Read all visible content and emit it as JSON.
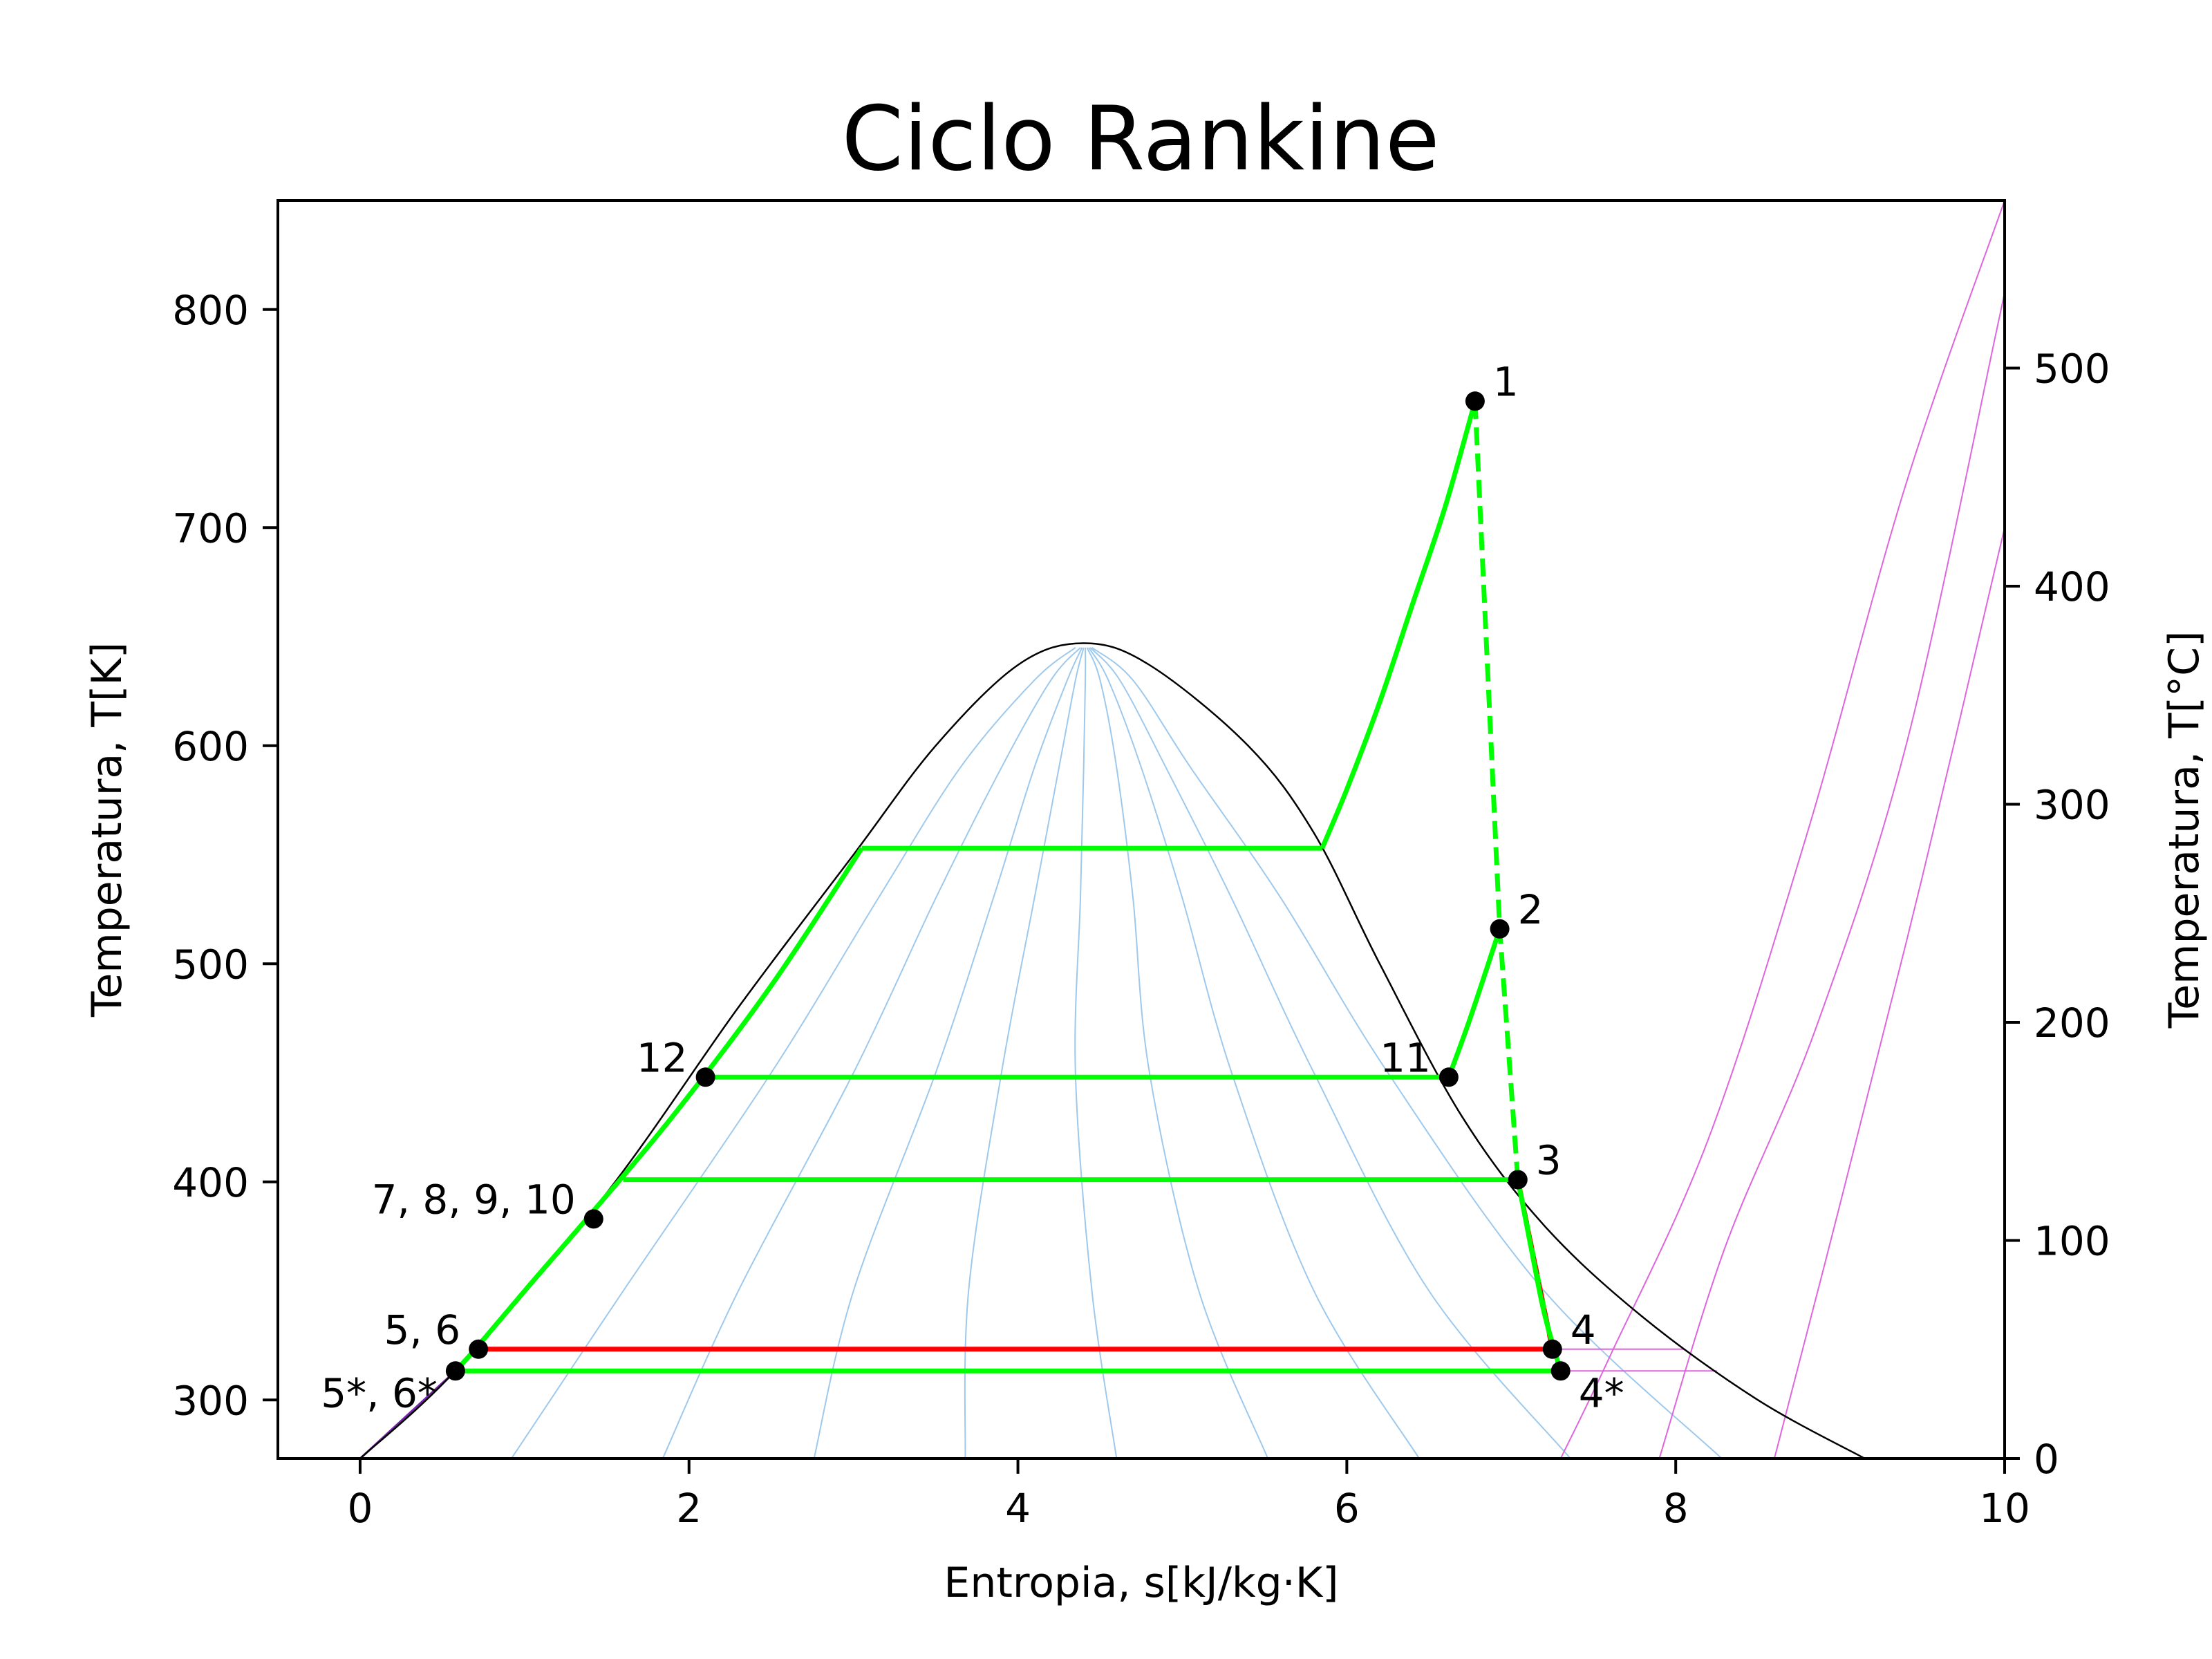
{
  "chart_data": {
    "type": "line",
    "title": "Ciclo Rankine",
    "xlabel": "Entropia, s[kJ/kg·K]",
    "ylabel": "Temperatura, T[K]",
    "ylabel_right": "Temperatura, T[°C]",
    "xlim": [
      -0.5,
      10
    ],
    "ylim": [
      273.15,
      850
    ],
    "ylim_right": [
      0,
      576.85
    ],
    "xticks": [
      "0",
      "2",
      "4",
      "6",
      "8",
      "10"
    ],
    "yticks": [
      "300",
      "400",
      "500",
      "600",
      "700",
      "800"
    ],
    "yticks_right": [
      "0",
      "100",
      "200",
      "300",
      "400",
      "500"
    ],
    "colors": {
      "cycle": "#00ff00",
      "real": "#ff0000",
      "dome": "#000000",
      "quality_lines": "#9ec9ec",
      "isobars": "#dd66dd",
      "points": "#000000"
    },
    "saturation_dome": {
      "s": [
        0,
        0.6,
        1.5,
        2.3,
        3.0,
        3.5,
        4.0,
        4.4,
        4.8,
        5.4,
        5.8,
        6.2,
        6.7,
        7.2,
        7.8,
        8.5,
        9.15
      ],
      "T": [
        273.15,
        315,
        395,
        480,
        550,
        600,
        637,
        647,
        637,
        600,
        560,
        500,
        430,
        380,
        338,
        300,
        273.15
      ]
    },
    "quality_lines": [
      {
        "q": 0.1,
        "s": [
          0.92,
          1.6,
          2.5,
          3.15,
          3.65,
          4.1,
          4.35
        ]
      },
      {
        "q": 0.2,
        "s": [
          1.84,
          2.3,
          3.0,
          3.5,
          3.9,
          4.2,
          4.38
        ]
      },
      {
        "q": 0.3,
        "s": [
          2.76,
          3.0,
          3.5,
          3.85,
          4.1,
          4.3,
          4.39
        ]
      },
      {
        "q": 0.4,
        "s": [
          3.68,
          3.7,
          3.9,
          4.1,
          4.25,
          4.35,
          4.4
        ]
      },
      {
        "q": 0.5,
        "s": [
          4.6,
          4.45,
          4.35,
          4.38,
          4.4,
          4.41,
          4.41
        ]
      },
      {
        "q": 0.6,
        "s": [
          5.52,
          5.1,
          4.8,
          4.7,
          4.6,
          4.5,
          4.42
        ]
      },
      {
        "q": 0.7,
        "s": [
          6.44,
          5.8,
          5.3,
          5.0,
          4.75,
          4.55,
          4.43
        ]
      },
      {
        "q": 0.8,
        "s": [
          7.36,
          6.5,
          5.8,
          5.3,
          4.9,
          4.62,
          4.44
        ]
      },
      {
        "q": 0.9,
        "s": [
          8.28,
          7.2,
          6.25,
          5.6,
          5.05,
          4.7,
          4.45
        ]
      }
    ],
    "quality_T": [
      273.15,
      350,
      450,
      530,
      590,
      630,
      645
    ],
    "isobars": [
      {
        "s": [
          7.3,
          7.6,
          8.2,
          8.8,
          9.4,
          10.0
        ],
        "T": [
          273.15,
          320,
          420,
          560,
          720,
          850
        ]
      },
      {
        "s": [
          7.9,
          8.3,
          8.85,
          9.4,
          9.95,
          10.0
        ],
        "T": [
          273.15,
          370,
          470,
          600,
          790,
          810
        ]
      },
      {
        "s": [
          8.6,
          9.0,
          9.5,
          10.0
        ],
        "T": [
          273.15,
          390,
          540,
          700
        ]
      }
    ],
    "horizontal_isobars": [
      {
        "s": [
          7.25,
          8.05
        ],
        "T": [
          323.3,
          323.3
        ]
      },
      {
        "s": [
          7.3,
          8.25
        ],
        "T": [
          313.3,
          313.3
        ]
      }
    ],
    "cycle_segments": [
      {
        "name": "",
        "style": "solid",
        "color": "cycle",
        "s": [
          0.58,
          0.7,
          1.0,
          1.4,
          1.9,
          2.5,
          3.05
        ],
        "T": [
          313.3,
          323.3,
          350,
          385,
          430,
          490,
          553
        ]
      },
      {
        "name": "",
        "style": "solid",
        "color": "cycle",
        "s": [
          3.05,
          5.85
        ],
        "T": [
          553,
          553
        ]
      },
      {
        "name": "",
        "style": "solid",
        "color": "cycle",
        "s": [
          5.85,
          6.0,
          6.2,
          6.4,
          6.6,
          6.78
        ],
        "T": [
          553,
          580,
          620,
          665,
          710,
          758
        ]
      },
      {
        "name": "",
        "style": "dashed",
        "color": "cycle",
        "s": [
          6.78,
          6.93,
          7.04,
          7.25
        ],
        "T": [
          758,
          516,
          401,
          323.3
        ]
      },
      {
        "name": "",
        "style": "solid",
        "color": "cycle",
        "s": [
          6.62,
          6.75,
          6.93
        ],
        "T": [
          448,
          475,
          516
        ]
      },
      {
        "name": "",
        "style": "solid",
        "color": "cycle",
        "s": [
          2.1,
          6.62
        ],
        "T": [
          448,
          448
        ]
      },
      {
        "name": "",
        "style": "solid",
        "color": "cycle",
        "s": [
          1.6,
          7.04
        ],
        "T": [
          401,
          401
        ]
      },
      {
        "name": "",
        "style": "dashed",
        "color": "real",
        "s": [
          7.04,
          7.15,
          7.25
        ],
        "T": [
          401,
          360,
          323.3
        ]
      },
      {
        "name": "",
        "style": "solid",
        "color": "cycle",
        "s": [
          7.04,
          7.12,
          7.2,
          7.3
        ],
        "T": [
          401,
          370,
          340,
          313.3
        ]
      },
      {
        "name": "",
        "style": "solid",
        "color": "real",
        "s": [
          0.72,
          7.25
        ],
        "T": [
          323.3,
          323.3
        ]
      },
      {
        "name": "",
        "style": "solid",
        "color": "cycle",
        "s": [
          0.58,
          7.3
        ],
        "T": [
          313.3,
          313.3
        ]
      }
    ],
    "points": [
      {
        "label": "1",
        "s": 6.78,
        "T": 758,
        "anchor": "start"
      },
      {
        "label": "2",
        "s": 6.93,
        "T": 516,
        "anchor": "start"
      },
      {
        "label": "11",
        "s": 6.62,
        "T": 448,
        "anchor": "end"
      },
      {
        "label": "12",
        "s": 2.1,
        "T": 448,
        "anchor": "end"
      },
      {
        "label": "3",
        "s": 7.04,
        "T": 401,
        "anchor": "start"
      },
      {
        "label": "7, 8, 9, 10",
        "s": 1.42,
        "T": 383,
        "anchor": "end"
      },
      {
        "label": "4",
        "s": 7.25,
        "T": 323.3,
        "anchor": "start"
      },
      {
        "label": "4*",
        "s": 7.3,
        "T": 313.3,
        "anchor": "start-below"
      },
      {
        "label": "5, 6",
        "s": 0.72,
        "T": 323.3,
        "anchor": "end"
      },
      {
        "label": "5*, 6*",
        "s": 0.58,
        "T": 313.3,
        "anchor": "end-below"
      }
    ]
  }
}
